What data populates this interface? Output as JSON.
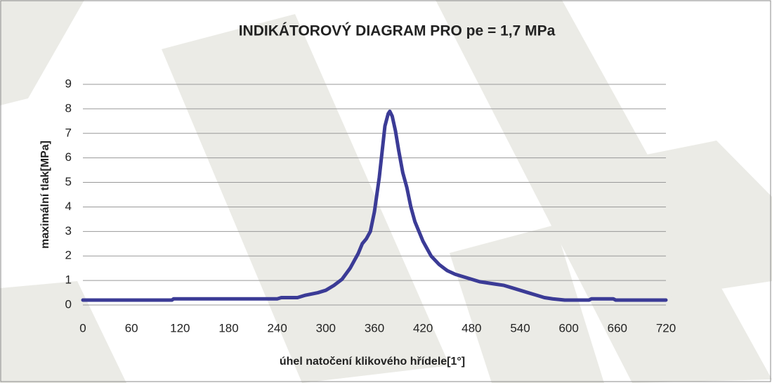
{
  "chart_data": {
    "type": "line",
    "title": "INDIKÁTOROVÝ DIAGRAM PRO pe = 1,7 MPa",
    "xlabel": "úhel natočení klikového hřídele[1°]",
    "ylabel": "maximální tlak[MPa]",
    "xlim": [
      0,
      720
    ],
    "xticks": [
      0,
      60,
      120,
      180,
      240,
      300,
      360,
      420,
      480,
      540,
      600,
      660,
      720
    ],
    "ylim": [
      0,
      9
    ],
    "yticks": [
      0,
      1,
      2,
      3,
      4,
      5,
      6,
      7,
      8,
      9
    ],
    "grid": true,
    "series": [
      {
        "color": "#3b3b96",
        "x": [
          0,
          110,
          112,
          240,
          245,
          265,
          275,
          290,
          300,
          310,
          320,
          330,
          335,
          340,
          345,
          350,
          355,
          360,
          363,
          366,
          370,
          373,
          377,
          379,
          382,
          386,
          390,
          395,
          400,
          405,
          410,
          415,
          420,
          425,
          430,
          440,
          450,
          460,
          470,
          480,
          490,
          500,
          510,
          520,
          530,
          540,
          550,
          560,
          570,
          580,
          595,
          625,
          628,
          655,
          658,
          720
        ],
        "values": [
          0.2,
          0.2,
          0.25,
          0.25,
          0.3,
          0.3,
          0.4,
          0.5,
          0.6,
          0.8,
          1.05,
          1.5,
          1.8,
          2.1,
          2.5,
          2.7,
          3.0,
          3.8,
          4.5,
          5.2,
          6.4,
          7.3,
          7.8,
          7.9,
          7.7,
          7.1,
          6.3,
          5.4,
          4.8,
          4.0,
          3.4,
          3.0,
          2.6,
          2.3,
          2.0,
          1.65,
          1.4,
          1.25,
          1.15,
          1.05,
          0.95,
          0.9,
          0.85,
          0.8,
          0.7,
          0.6,
          0.5,
          0.4,
          0.3,
          0.25,
          0.2,
          0.2,
          0.25,
          0.25,
          0.2,
          0.2
        ]
      }
    ]
  }
}
